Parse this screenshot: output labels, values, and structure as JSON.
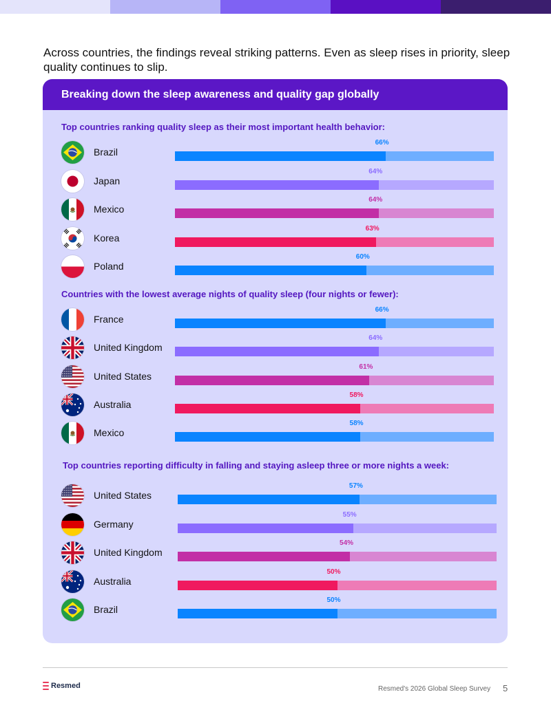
{
  "intro_text": "Across countries, the findings reveal striking patterns. Even as sleep rises in priority, sleep quality continues to slip.",
  "card_title": "Breaking down the sleep awareness and quality gap globally",
  "colors": {
    "blue": [
      "#0a84ff",
      "#6eaeff"
    ],
    "violet": [
      "#8b6cff",
      "#b6a8ff"
    ],
    "magenta": [
      "#c22fa6",
      "#d886d2"
    ],
    "pink": [
      "#f0195f",
      "#ee7bb6"
    ],
    "strip": [
      "#e4e4fb",
      "#b7b5f7",
      "#7f62f3",
      "#5a10c3",
      "#3b1e6e"
    ],
    "header_bg": "#5b17c6",
    "card_bg": "#d8d8fd",
    "section_title": "#5417c0"
  },
  "sections": [
    {
      "title": "Top countries ranking quality sleep as their most important health behavior:",
      "rows": [
        {
          "country": "Brazil",
          "value": 66,
          "label": "66%",
          "flag": "brazil-flag-icon",
          "color": "blue"
        },
        {
          "country": "Japan",
          "value": 64,
          "label": "64%",
          "flag": "japan-flag-icon",
          "color": "violet"
        },
        {
          "country": "Mexico",
          "value": 64,
          "label": "64%",
          "flag": "mexico-flag-icon",
          "color": "magenta"
        },
        {
          "country": "Korea",
          "value": 63,
          "label": "63%",
          "flag": "korea-flag-icon",
          "color": "pink"
        },
        {
          "country": "Poland",
          "value": 60,
          "label": "60%",
          "flag": "poland-flag-icon",
          "color": "blue"
        }
      ]
    },
    {
      "title": "Countries with the lowest average nights of quality sleep (four nights or fewer):",
      "rows": [
        {
          "country": "France",
          "value": 66,
          "label": "66%",
          "flag": "france-flag-icon",
          "color": "blue"
        },
        {
          "country": "United Kingdom",
          "value": 64,
          "label": "64%",
          "flag": "uk-flag-icon",
          "color": "violet"
        },
        {
          "country": "United States",
          "value": 61,
          "label": "61%",
          "flag": "us-flag-icon",
          "color": "magenta"
        },
        {
          "country": "Australia",
          "value": 58,
          "label": "58%",
          "flag": "australia-flag-icon",
          "color": "pink"
        },
        {
          "country": "Mexico",
          "value": 58,
          "label": "58%",
          "flag": "mexico-flag-icon",
          "color": "blue"
        }
      ]
    },
    {
      "title": "Top countries reporting difficulty in falling and staying asleep three or more nights a week:",
      "rows": [
        {
          "country": "United States",
          "value": 57,
          "label": "57%",
          "flag": "us-flag-icon",
          "color": "blue"
        },
        {
          "country": "Germany",
          "value": 55,
          "label": "55%",
          "flag": "germany-flag-icon",
          "color": "violet"
        },
        {
          "country": "United Kingdom",
          "value": 54,
          "label": "54%",
          "flag": "uk-flag-icon",
          "color": "magenta"
        },
        {
          "country": "Australia",
          "value": 50,
          "label": "50%",
          "flag": "australia-flag-icon",
          "color": "pink"
        },
        {
          "country": "Brazil",
          "value": 50,
          "label": "50%",
          "flag": "brazil-flag-icon",
          "color": "blue"
        }
      ]
    }
  ],
  "footer": {
    "logo_text": "Resmed",
    "survey_text": "Resmed's 2026 Global Sleep Survey",
    "page_number": "5"
  }
}
